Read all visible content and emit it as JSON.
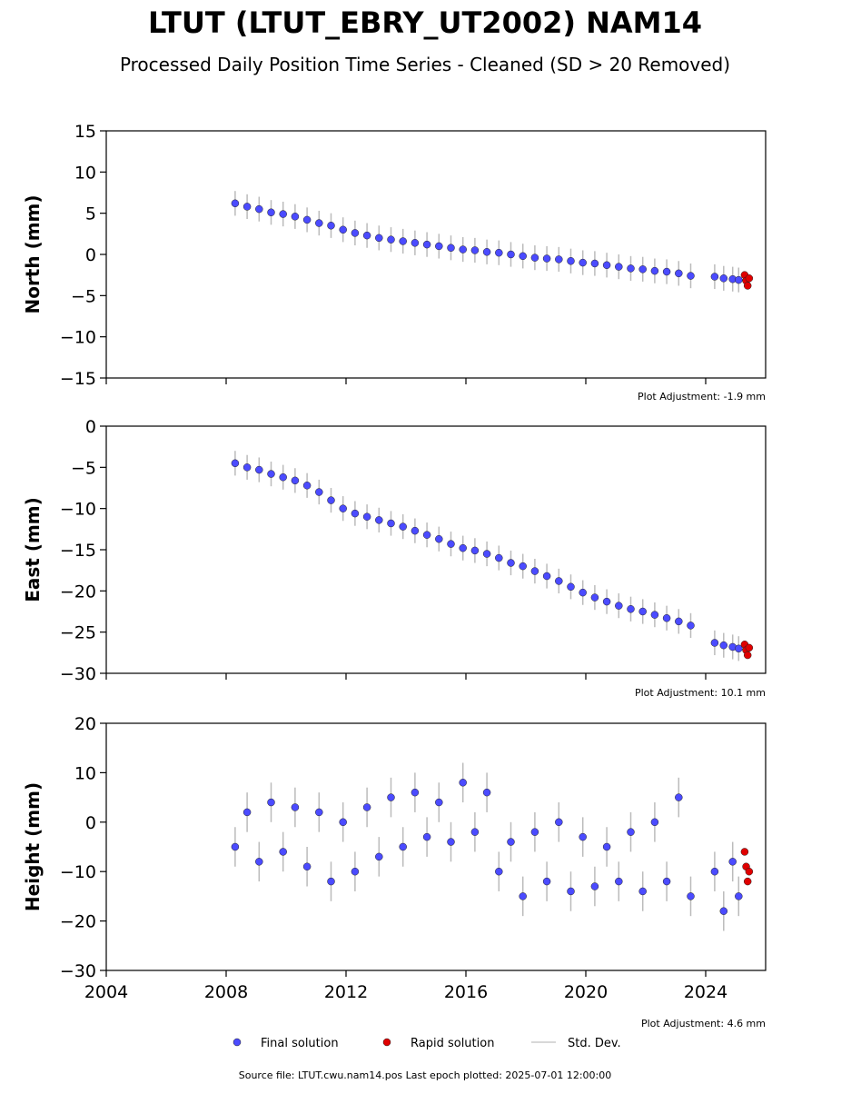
{
  "title": "LTUT (LTUT_EBRY_UT2002) NAM14",
  "subtitle": "Processed Daily Position Time Series - Cleaned (SD > 20 Removed)",
  "legend": {
    "final": "Final solution",
    "rapid": "Rapid solution",
    "std": "Std. Dev."
  },
  "footer": "Source file: LTUT.cwu.nam14.pos  Last epoch plotted: 2025-07-01 12:00:00",
  "chart_data": [
    {
      "type": "scatter",
      "ylabel": "North (mm)",
      "annotation": "Plot Adjustment: -1.9 mm",
      "xlim": [
        2004,
        2026
      ],
      "xticks": [
        2004,
        2008,
        2012,
        2016,
        2020,
        2024
      ],
      "show_xtick_labels": false,
      "ylim": [
        -15,
        15
      ],
      "yticks": [
        {
          "value": -15,
          "label": "−15"
        },
        {
          "value": -10,
          "label": "−10"
        },
        {
          "value": -5,
          "label": "−5"
        },
        0,
        5,
        10,
        15
      ],
      "series": [
        {
          "name": "Final solution",
          "color": "#4b4bff",
          "x": [
            2008.3,
            2008.7,
            2009.1,
            2009.5,
            2009.9,
            2010.3,
            2010.7,
            2011.1,
            2011.5,
            2011.9,
            2012.3,
            2012.7,
            2013.1,
            2013.5,
            2013.9,
            2014.3,
            2014.7,
            2015.1,
            2015.5,
            2015.9,
            2016.3,
            2016.7,
            2017.1,
            2017.5,
            2017.9,
            2018.3,
            2018.7,
            2019.1,
            2019.5,
            2019.9,
            2020.3,
            2020.7,
            2021.1,
            2021.5,
            2021.9,
            2022.3,
            2022.7,
            2023.1,
            2023.5,
            2024.3,
            2024.6,
            2024.9,
            2025.1
          ],
          "values": [
            6.2,
            5.8,
            5.5,
            5.1,
            4.9,
            4.6,
            4.2,
            3.8,
            3.5,
            3.0,
            2.6,
            2.3,
            2.0,
            1.8,
            1.6,
            1.4,
            1.2,
            1.0,
            0.8,
            0.6,
            0.5,
            0.3,
            0.2,
            0.0,
            -0.2,
            -0.4,
            -0.5,
            -0.6,
            -0.8,
            -1.0,
            -1.1,
            -1.3,
            -1.5,
            -1.7,
            -1.8,
            -2.0,
            -2.1,
            -2.3,
            -2.6,
            -2.7,
            -2.9,
            -3.0,
            -3.1
          ],
          "errors": [
            1.5,
            1.5,
            1.5,
            1.5,
            1.5,
            1.5,
            1.5,
            1.5,
            1.5,
            1.5,
            1.5,
            1.5,
            1.5,
            1.5,
            1.5,
            1.5,
            1.5,
            1.5,
            1.5,
            1.5,
            1.5,
            1.5,
            1.5,
            1.5,
            1.5,
            1.5,
            1.5,
            1.5,
            1.5,
            1.5,
            1.5,
            1.5,
            1.5,
            1.5,
            1.5,
            1.5,
            1.5,
            1.5,
            1.5,
            1.5,
            1.5,
            1.5,
            1.5
          ]
        },
        {
          "name": "Rapid solution",
          "color": "#e00000",
          "x": [
            2025.3,
            2025.35,
            2025.4,
            2025.45
          ],
          "values": [
            -2.5,
            -3.2,
            -3.8,
            -2.9
          ]
        }
      ]
    },
    {
      "type": "scatter",
      "ylabel": "East (mm)",
      "annotation": "Plot Adjustment: 10.1 mm",
      "xlim": [
        2004,
        2026
      ],
      "xticks": [
        2004,
        2008,
        2012,
        2016,
        2020,
        2024
      ],
      "show_xtick_labels": false,
      "ylim": [
        -30,
        0
      ],
      "yticks": [
        {
          "value": -30,
          "label": "−30"
        },
        {
          "value": -25,
          "label": "−25"
        },
        {
          "value": -20,
          "label": "−20"
        },
        {
          "value": -15,
          "label": "−15"
        },
        {
          "value": -10,
          "label": "−10"
        },
        {
          "value": -5,
          "label": "−5"
        },
        0
      ],
      "series": [
        {
          "name": "Final solution",
          "color": "#4b4bff",
          "x": [
            2008.3,
            2008.7,
            2009.1,
            2009.5,
            2009.9,
            2010.3,
            2010.7,
            2011.1,
            2011.5,
            2011.9,
            2012.3,
            2012.7,
            2013.1,
            2013.5,
            2013.9,
            2014.3,
            2014.7,
            2015.1,
            2015.5,
            2015.9,
            2016.3,
            2016.7,
            2017.1,
            2017.5,
            2017.9,
            2018.3,
            2018.7,
            2019.1,
            2019.5,
            2019.9,
            2020.3,
            2020.7,
            2021.1,
            2021.5,
            2021.9,
            2022.3,
            2022.7,
            2023.1,
            2023.5,
            2024.3,
            2024.6,
            2024.9,
            2025.1
          ],
          "values": [
            -4.5,
            -5.0,
            -5.3,
            -5.8,
            -6.2,
            -6.6,
            -7.2,
            -8.0,
            -9.0,
            -10.0,
            -10.6,
            -11.0,
            -11.4,
            -11.8,
            -12.2,
            -12.7,
            -13.2,
            -13.7,
            -14.3,
            -14.8,
            -15.1,
            -15.5,
            -16.0,
            -16.6,
            -17.0,
            -17.6,
            -18.2,
            -18.8,
            -19.5,
            -20.2,
            -20.8,
            -21.3,
            -21.8,
            -22.2,
            -22.5,
            -22.9,
            -23.3,
            -23.7,
            -24.2,
            -26.3,
            -26.6,
            -26.8,
            -27.0
          ],
          "errors": [
            1.5,
            1.5,
            1.5,
            1.5,
            1.5,
            1.5,
            1.5,
            1.5,
            1.5,
            1.5,
            1.5,
            1.5,
            1.5,
            1.5,
            1.5,
            1.5,
            1.5,
            1.5,
            1.5,
            1.5,
            1.5,
            1.5,
            1.5,
            1.5,
            1.5,
            1.5,
            1.5,
            1.5,
            1.5,
            1.5,
            1.5,
            1.5,
            1.5,
            1.5,
            1.5,
            1.5,
            1.5,
            1.5,
            1.5,
            1.5,
            1.5,
            1.5,
            1.5
          ]
        },
        {
          "name": "Rapid solution",
          "color": "#e00000",
          "x": [
            2025.3,
            2025.35,
            2025.4,
            2025.45
          ],
          "values": [
            -26.5,
            -27.2,
            -27.8,
            -26.9
          ]
        }
      ]
    },
    {
      "type": "scatter",
      "ylabel": "Height (mm)",
      "annotation": "Plot Adjustment: 4.6 mm",
      "xlim": [
        2004,
        2026
      ],
      "xticks": [
        2004,
        2008,
        2012,
        2016,
        2020,
        2024
      ],
      "show_xtick_labels": true,
      "ylim": [
        -30,
        20
      ],
      "yticks": [
        {
          "value": -30,
          "label": "−30"
        },
        {
          "value": -20,
          "label": "−20"
        },
        {
          "value": -10,
          "label": "−10"
        },
        0,
        10,
        20
      ],
      "series": [
        {
          "name": "Final solution",
          "color": "#4b4bff",
          "x": [
            2008.3,
            2008.7,
            2009.1,
            2009.5,
            2009.9,
            2010.3,
            2010.7,
            2011.1,
            2011.5,
            2011.9,
            2012.3,
            2012.7,
            2013.1,
            2013.5,
            2013.9,
            2014.3,
            2014.7,
            2015.1,
            2015.5,
            2015.9,
            2016.3,
            2016.7,
            2017.1,
            2017.5,
            2017.9,
            2018.3,
            2018.7,
            2019.1,
            2019.5,
            2019.9,
            2020.3,
            2020.7,
            2021.1,
            2021.5,
            2021.9,
            2022.3,
            2022.7,
            2023.1,
            2023.5,
            2024.3,
            2024.6,
            2024.9,
            2025.1
          ],
          "values": [
            -5,
            2,
            -8,
            4,
            -6,
            3,
            -9,
            2,
            -12,
            0,
            -10,
            3,
            -7,
            5,
            -5,
            6,
            -3,
            4,
            -4,
            8,
            -2,
            6,
            -10,
            -4,
            -15,
            -2,
            -12,
            0,
            -14,
            -3,
            -13,
            -5,
            -12,
            -2,
            -14,
            0,
            -12,
            5,
            -15,
            -10,
            -18,
            -8,
            -15
          ],
          "errors": [
            4,
            4,
            4,
            4,
            4,
            4,
            4,
            4,
            4,
            4,
            4,
            4,
            4,
            4,
            4,
            4,
            4,
            4,
            4,
            4,
            4,
            4,
            4,
            4,
            4,
            4,
            4,
            4,
            4,
            4,
            4,
            4,
            4,
            4,
            4,
            4,
            4,
            4,
            4,
            4,
            4,
            4,
            4
          ]
        },
        {
          "name": "Rapid solution",
          "color": "#e00000",
          "x": [
            2025.3,
            2025.35,
            2025.4,
            2025.45
          ],
          "values": [
            -6,
            -9,
            -12,
            -10
          ]
        }
      ]
    }
  ]
}
